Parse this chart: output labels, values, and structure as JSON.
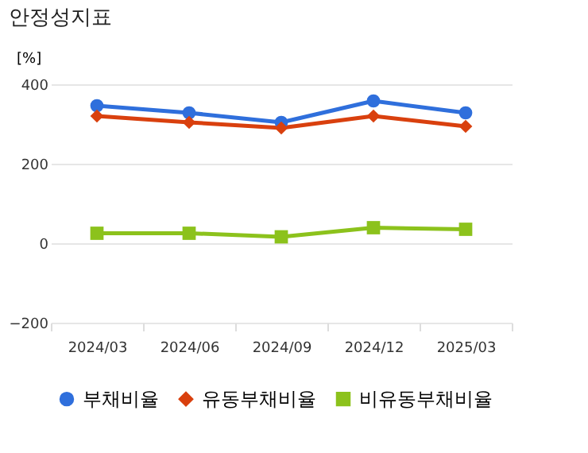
{
  "chart_data": {
    "type": "line",
    "title": "안정성지표",
    "ylabel": "[%]",
    "categories": [
      "2024/03",
      "2024/06",
      "2024/09",
      "2024/12",
      "2025/03"
    ],
    "ylim": [
      -200,
      400
    ],
    "yticks": [
      -200,
      0,
      200,
      400
    ],
    "grid": "y",
    "legend": "bottom",
    "series": [
      {
        "name": "부채비율",
        "color": "#2f6fdc",
        "marker": "circle",
        "values": [
          346,
          328,
          304,
          358,
          328
        ]
      },
      {
        "name": "유동부채비율",
        "color": "#d9400e",
        "marker": "diamond",
        "values": [
          320,
          304,
          290,
          320,
          294
        ]
      },
      {
        "name": "비유동부채비율",
        "color": "#8cc21c",
        "marker": "square",
        "values": [
          25,
          25,
          16,
          39,
          35
        ]
      }
    ]
  }
}
